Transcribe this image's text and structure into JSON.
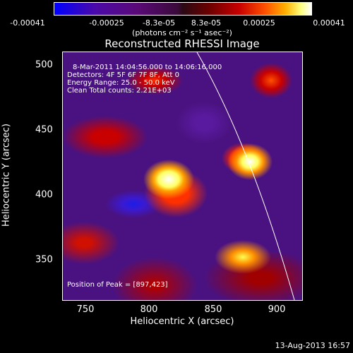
{
  "colorbar": {
    "ticks": [
      "-0.00041",
      "-0.00025",
      "-8.3e-05",
      "8.3e-05",
      "0.00025",
      "0.00041"
    ],
    "units": "(photons cm⁻² s⁻¹ asec⁻²)"
  },
  "plot": {
    "title": "Reconstructed RHESSI Image",
    "xlabel": "Heliocentric X (arcsec)",
    "ylabel": "Heliocentric Y (arcsec)",
    "x_ticks": [
      "750",
      "800",
      "850",
      "900"
    ],
    "y_ticks": [
      "500",
      "450",
      "400",
      "350"
    ],
    "info": {
      "time": "8-Mar-2011 14:04:56.000 to 14:06:16.000",
      "detectors": "Detectors: 4F 5F 6F 7F 8F, Att 0",
      "energy": "Energy Range: 25.0 - 50.0 keV",
      "clean": "Clean    Total counts: 2.21E+03"
    },
    "peak": "Position of Peak = [897,423]"
  },
  "footer": {
    "date": "13-Aug-2013 16:57"
  }
}
